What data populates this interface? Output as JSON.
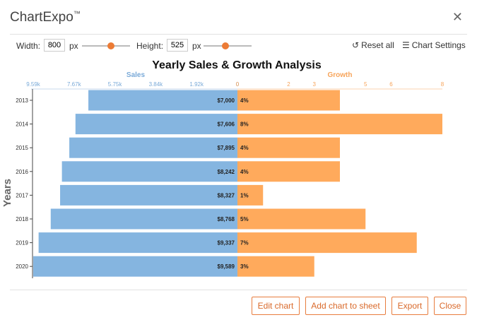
{
  "app": {
    "logo_text": "ChartExpo",
    "logo_tm": "™"
  },
  "toolbar": {
    "width_label": "Width:",
    "width_value": "800",
    "width_unit": "px",
    "height_label": "Height:",
    "height_value": "525",
    "height_unit": "px",
    "reset_label": "Reset all",
    "settings_label": "Chart Settings"
  },
  "footer": {
    "edit_label": "Edit chart",
    "add_label": "Add chart to sheet",
    "export_label": "Export",
    "close_label": "Close"
  },
  "colors": {
    "accent": "#ec7b35",
    "sales": "#85b5e0",
    "growth": "#ffaa5c",
    "sales_axis": "#7aaad8",
    "growth_axis": "#f7a45a"
  },
  "icons": {
    "close": "close-icon",
    "reset": "reset-icon",
    "settings": "settings-sliders-icon"
  },
  "chart_data": {
    "type": "bar",
    "title": "Yearly Sales & Growth Analysis",
    "ylabel": "Years",
    "categories": [
      "2013",
      "2014",
      "2015",
      "2016",
      "2017",
      "2018",
      "2019",
      "2020"
    ],
    "series": [
      {
        "name": "Sales",
        "values": [
          7000,
          7606,
          7895,
          8242,
          8327,
          8768,
          9337,
          9589
        ],
        "labels": [
          "$7,000",
          "$7,606",
          "$7,895",
          "$8,242",
          "$8,327",
          "$8,768",
          "$9,337",
          "$9,589"
        ],
        "axis_ticks": [
          "9.59k",
          "7.67k",
          "5.75k",
          "3.84k",
          "1.92k",
          "0"
        ],
        "xlim": [
          0,
          9590
        ]
      },
      {
        "name": "Growth",
        "values": [
          4,
          8,
          4,
          4,
          1,
          5,
          7,
          3
        ],
        "labels": [
          "4%",
          "8%",
          "4%",
          "4%",
          "1%",
          "5%",
          "7%",
          "3%"
        ],
        "axis_ticks": [
          "0",
          "2",
          "3",
          "5",
          "6",
          "8"
        ],
        "xlim": [
          0,
          8
        ]
      }
    ]
  }
}
